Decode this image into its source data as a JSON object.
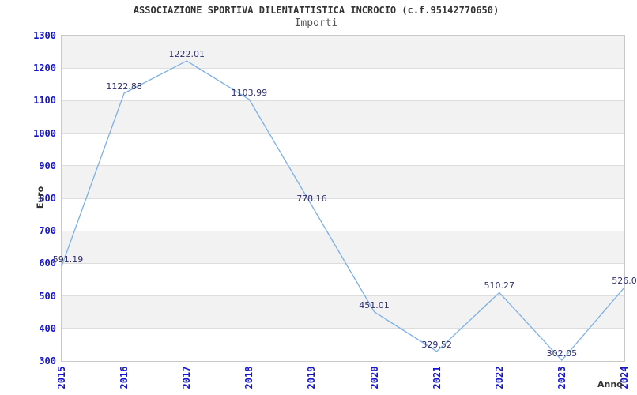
{
  "header": {
    "title": "ASSOCIAZIONE SPORTIVA DILENTATTISTICA INCROCIO (c.f.95142770650)",
    "subtitle": "Importi"
  },
  "chart_data": {
    "type": "line",
    "title": "ASSOCIAZIONE SPORTIVA DILENTATTISTICA INCROCIO (c.f.95142770650)",
    "subtitle": "Importi",
    "xlabel": "Anno",
    "ylabel": "Euro",
    "categories": [
      "2015",
      "2016",
      "2017",
      "2018",
      "2019",
      "2020",
      "2021",
      "2022",
      "2023",
      "2024"
    ],
    "values": [
      591.19,
      1122.88,
      1222.01,
      1103.99,
      778.16,
      451.01,
      329.52,
      510.27,
      302.05,
      526.0
    ],
    "point_labels": [
      "591.19",
      "1122.88",
      "1222.01",
      "1103.99",
      "778.16",
      "451.01",
      "329.52",
      "510.27",
      "302.05",
      "526.0"
    ],
    "ylim": [
      300,
      1300
    ],
    "ytick_step": 100,
    "yticks": [
      300,
      400,
      500,
      600,
      700,
      800,
      900,
      1000,
      1100,
      1200,
      1300
    ],
    "grid": "horizontal",
    "banded_background": true,
    "legend_position": "none",
    "colors": {
      "line": "#7cb0e8",
      "tick_label": "#1414d2",
      "point_label": "#2e2e6e",
      "band": "#f2f2f2",
      "gridline": "#dddddd",
      "plot_border": "#c9c9c9",
      "axis_title": "#333333",
      "title": "#333333",
      "subtitle": "#555555"
    }
  }
}
